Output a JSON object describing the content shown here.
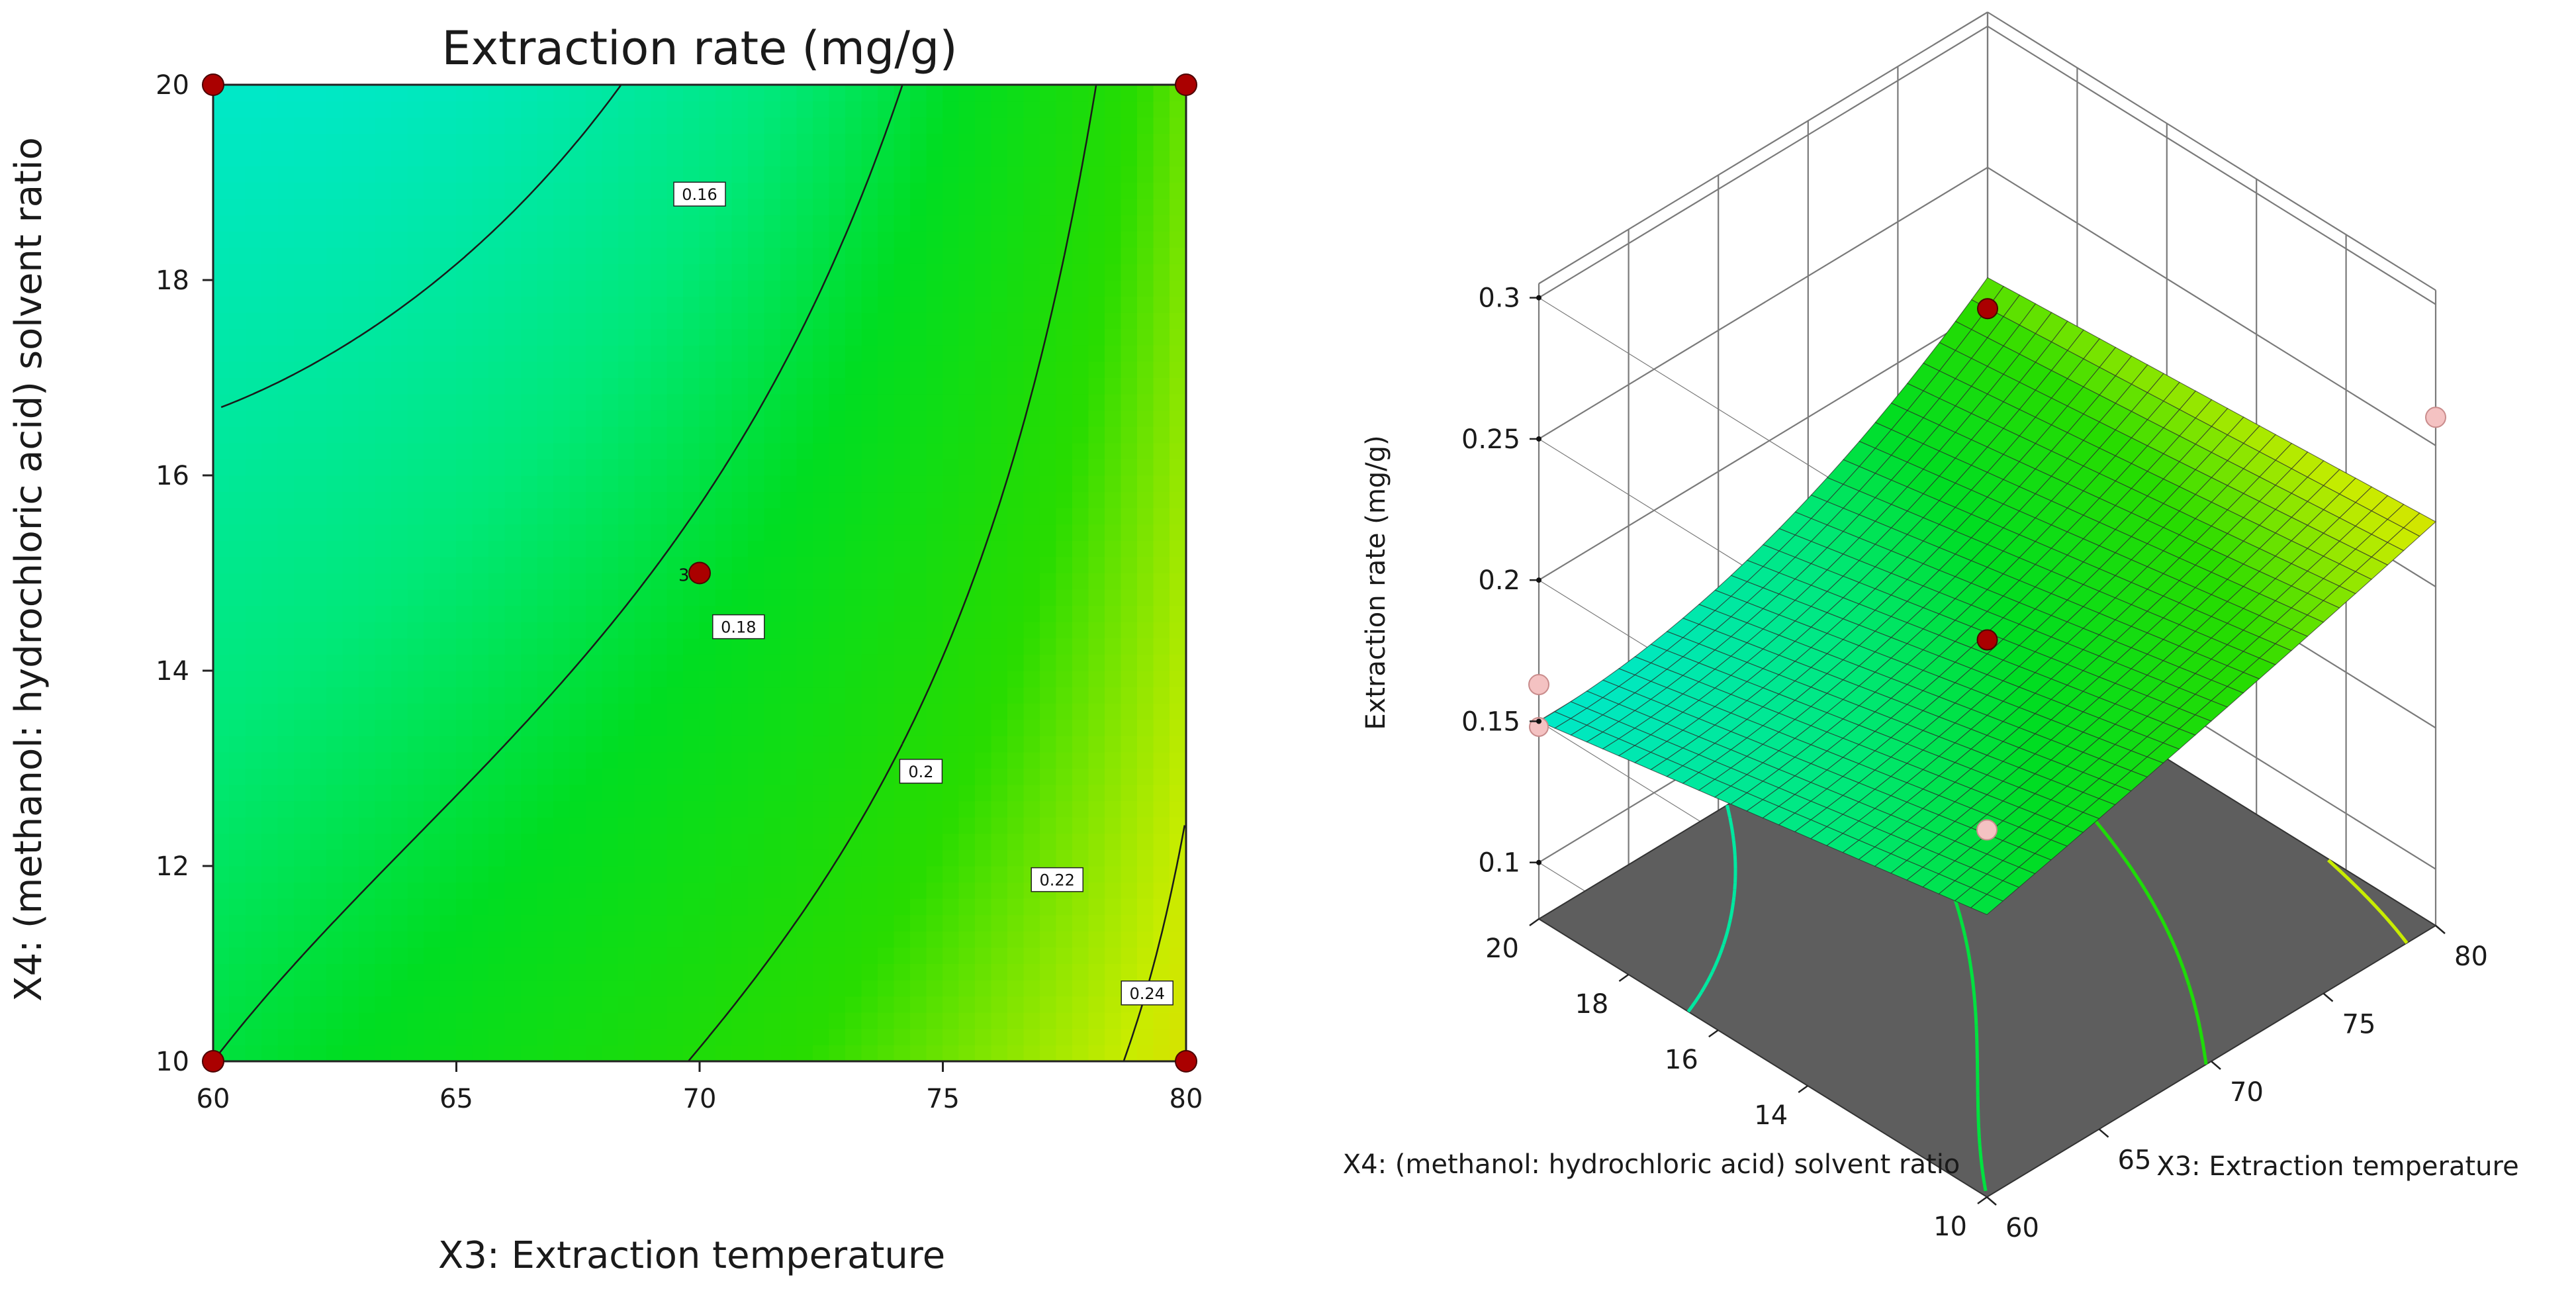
{
  "chart_data": [
    {
      "type": "heatmap",
      "subtype": "contour",
      "title": "Extraction rate (mg/g)",
      "xlabel": "X3: Extraction temperature",
      "ylabel": "X4: (methanol: hydrochloric acid) solvent ratio",
      "xlim": [
        60,
        80
      ],
      "ylim": [
        10,
        20
      ],
      "xticks": [
        "60",
        "65",
        "70",
        "75",
        "80"
      ],
      "yticks": [
        "10",
        "12",
        "14",
        "16",
        "18",
        "20"
      ],
      "contour_levels": [
        "0.16",
        "0.18",
        "0.2",
        "0.22",
        "0.24"
      ],
      "design_points": [
        {
          "x": 60,
          "y": 10
        },
        {
          "x": 60,
          "y": 20
        },
        {
          "x": 80,
          "y": 10
        },
        {
          "x": 80,
          "y": 20
        },
        {
          "x": 70,
          "y": 15,
          "label": "3"
        }
      ],
      "colors": {
        "low": "#00e8c8",
        "mid": "#00dd22",
        "high1": "#ddee00",
        "high2": "#ee4400",
        "point": "#aa0000"
      }
    },
    {
      "type": "surface",
      "zlabel": "Extraction rate (mg/g)",
      "xlabel": "X3: Extraction temperature",
      "ylabel": "X4: (methanol: hydrochloric acid) solvent ratio",
      "zticks": [
        "0.1",
        "0.15",
        "0.2",
        "0.25",
        "0.3"
      ],
      "zlim": [
        0.08,
        0.3
      ],
      "xticks": [
        "60",
        "65",
        "70",
        "75",
        "80"
      ],
      "yticks": [
        "10",
        "14",
        "16",
        "18",
        "20"
      ],
      "corner_values": [
        {
          "x": 60,
          "y": 10,
          "z": 0.21
        },
        {
          "x": 60,
          "y": 20,
          "z": 0.163
        },
        {
          "x": 80,
          "y": 10,
          "z": 0.26
        },
        {
          "x": 80,
          "y": 20,
          "z": 0.2
        }
      ],
      "center_point": {
        "x": 70,
        "y": 15,
        "z": 0.18
      },
      "floor_color": "#5e5e5e"
    }
  ]
}
